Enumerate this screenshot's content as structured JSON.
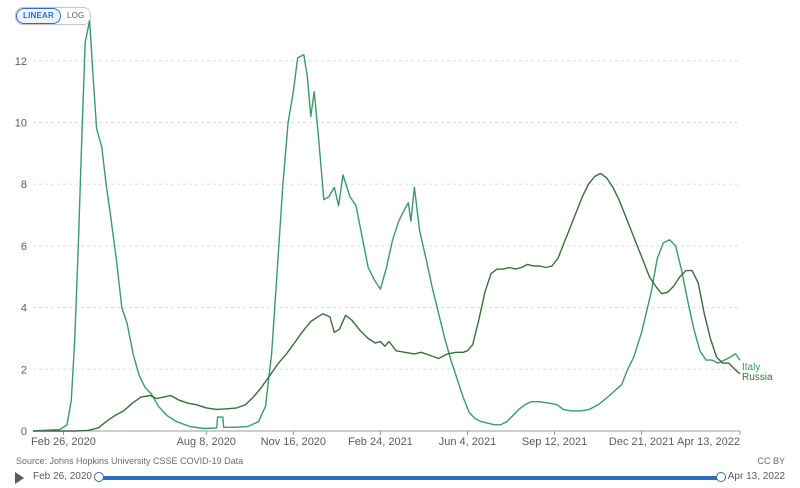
{
  "controls": {
    "linear_label": "LINEAR",
    "log_label": "LOG"
  },
  "chart_data": {
    "type": "line",
    "title": "",
    "xlabel": "",
    "ylabel": "",
    "xlim": [
      "2020-01-22",
      "2022-04-13"
    ],
    "ylim": [
      0,
      13
    ],
    "grid": true,
    "y_ticks": [
      0,
      2,
      4,
      6,
      8,
      10,
      12
    ],
    "x_tick_labels": [
      {
        "date": "2020-02-26",
        "label": "Feb 26, 2020"
      },
      {
        "date": "2020-08-08",
        "label": "Aug 8, 2020"
      },
      {
        "date": "2020-11-16",
        "label": "Nov 16, 2020"
      },
      {
        "date": "2021-02-24",
        "label": "Feb 24, 2021"
      },
      {
        "date": "2021-06-04",
        "label": "Jun 4, 2021"
      },
      {
        "date": "2021-09-12",
        "label": "Sep 12, 2021"
      },
      {
        "date": "2021-12-21",
        "label": "Dec 21, 2021"
      },
      {
        "date": "2022-04-13",
        "label": "Apr 13, 2022"
      }
    ],
    "series": [
      {
        "name": "Italy",
        "color": "#3a9b6a",
        "points": [
          [
            "2020-01-22",
            0
          ],
          [
            "2020-02-22",
            0.05
          ],
          [
            "2020-03-01",
            0.2
          ],
          [
            "2020-03-06",
            1
          ],
          [
            "2020-03-10",
            3
          ],
          [
            "2020-03-14",
            6
          ],
          [
            "2020-03-18",
            9.5
          ],
          [
            "2020-03-22",
            12.6
          ],
          [
            "2020-03-27",
            13.3
          ],
          [
            "2020-03-31",
            11.5
          ],
          [
            "2020-04-04",
            9.8
          ],
          [
            "2020-04-10",
            9.2
          ],
          [
            "2020-04-15",
            8
          ],
          [
            "2020-04-20",
            7
          ],
          [
            "2020-04-27",
            5.5
          ],
          [
            "2020-05-03",
            4
          ],
          [
            "2020-05-09",
            3.5
          ],
          [
            "2020-05-16",
            2.5
          ],
          [
            "2020-05-23",
            1.8
          ],
          [
            "2020-05-30",
            1.4
          ],
          [
            "2020-06-06",
            1.2
          ],
          [
            "2020-06-14",
            0.8
          ],
          [
            "2020-06-24",
            0.5
          ],
          [
            "2020-07-05",
            0.3
          ],
          [
            "2020-07-20",
            0.15
          ],
          [
            "2020-08-05",
            0.08
          ],
          [
            "2020-08-20",
            0.1
          ],
          [
            "2020-08-21",
            0.45
          ],
          [
            "2020-08-27",
            0.45
          ],
          [
            "2020-08-28",
            0.12
          ],
          [
            "2020-09-10",
            0.12
          ],
          [
            "2020-09-25",
            0.15
          ],
          [
            "2020-10-07",
            0.3
          ],
          [
            "2020-10-15",
            0.8
          ],
          [
            "2020-10-22",
            2.5
          ],
          [
            "2020-10-28",
            5
          ],
          [
            "2020-11-04",
            8
          ],
          [
            "2020-11-10",
            10
          ],
          [
            "2020-11-16",
            11
          ],
          [
            "2020-11-21",
            12.1
          ],
          [
            "2020-11-28",
            12.2
          ],
          [
            "2020-12-02",
            11.5
          ],
          [
            "2020-12-06",
            10.2
          ],
          [
            "2020-12-10",
            11
          ],
          [
            "2020-12-15",
            9.5
          ],
          [
            "2020-12-21",
            7.5
          ],
          [
            "2020-12-27",
            7.6
          ],
          [
            "2021-01-02",
            7.9
          ],
          [
            "2021-01-07",
            7.3
          ],
          [
            "2021-01-12",
            8.3
          ],
          [
            "2021-01-20",
            7.6
          ],
          [
            "2021-01-27",
            7.3
          ],
          [
            "2021-02-03",
            6.3
          ],
          [
            "2021-02-10",
            5.3
          ],
          [
            "2021-02-17",
            4.9
          ],
          [
            "2021-02-24",
            4.6
          ],
          [
            "2021-03-03",
            5.3
          ],
          [
            "2021-03-10",
            6.2
          ],
          [
            "2021-03-17",
            6.8
          ],
          [
            "2021-03-24",
            7.2
          ],
          [
            "2021-03-28",
            7.4
          ],
          [
            "2021-03-31",
            6.8
          ],
          [
            "2021-04-04",
            7.9
          ],
          [
            "2021-04-10",
            6.5
          ],
          [
            "2021-04-18",
            5.5
          ],
          [
            "2021-04-25",
            4.6
          ],
          [
            "2021-05-02",
            3.8
          ],
          [
            "2021-05-09",
            3
          ],
          [
            "2021-05-16",
            2.3
          ],
          [
            "2021-05-23",
            1.7
          ],
          [
            "2021-05-30",
            1.1
          ],
          [
            "2021-06-06",
            0.6
          ],
          [
            "2021-06-13",
            0.4
          ],
          [
            "2021-06-20",
            0.3
          ],
          [
            "2021-06-28",
            0.25
          ],
          [
            "2021-07-05",
            0.2
          ],
          [
            "2021-07-12",
            0.2
          ],
          [
            "2021-07-19",
            0.3
          ],
          [
            "2021-07-26",
            0.5
          ],
          [
            "2021-08-02",
            0.7
          ],
          [
            "2021-08-09",
            0.85
          ],
          [
            "2021-08-16",
            0.95
          ],
          [
            "2021-08-25",
            0.95
          ],
          [
            "2021-09-06",
            0.9
          ],
          [
            "2021-09-15",
            0.85
          ],
          [
            "2021-09-22",
            0.7
          ],
          [
            "2021-10-01",
            0.65
          ],
          [
            "2021-10-12",
            0.65
          ],
          [
            "2021-10-22",
            0.7
          ],
          [
            "2021-11-01",
            0.85
          ],
          [
            "2021-11-10",
            1.05
          ],
          [
            "2021-11-20",
            1.3
          ],
          [
            "2021-11-28",
            1.5
          ],
          [
            "2021-12-05",
            2
          ],
          [
            "2021-12-12",
            2.4
          ],
          [
            "2021-12-21",
            3.2
          ],
          [
            "2022-01-01",
            4.5
          ],
          [
            "2022-01-08",
            5.6
          ],
          [
            "2022-01-15",
            6.1
          ],
          [
            "2022-01-22",
            6.2
          ],
          [
            "2022-01-29",
            6
          ],
          [
            "2022-02-05",
            5.2
          ],
          [
            "2022-02-12",
            4.2
          ],
          [
            "2022-02-19",
            3.3
          ],
          [
            "2022-02-26",
            2.6
          ],
          [
            "2022-03-05",
            2.3
          ],
          [
            "2022-03-12",
            2.3
          ],
          [
            "2022-03-19",
            2.2
          ],
          [
            "2022-03-26",
            2.3
          ],
          [
            "2022-04-02",
            2.4
          ],
          [
            "2022-04-08",
            2.5
          ],
          [
            "2022-04-13",
            2.3
          ]
        ]
      },
      {
        "name": "Russia",
        "color": "#3b6e3b",
        "points": [
          [
            "2020-01-22",
            0
          ],
          [
            "2020-03-10",
            0
          ],
          [
            "2020-03-25",
            0.02
          ],
          [
            "2020-04-06",
            0.1
          ],
          [
            "2020-04-15",
            0.3
          ],
          [
            "2020-04-25",
            0.5
          ],
          [
            "2020-05-05",
            0.65
          ],
          [
            "2020-05-15",
            0.9
          ],
          [
            "2020-05-25",
            1.1
          ],
          [
            "2020-06-05",
            1.15
          ],
          [
            "2020-06-12",
            1.05
          ],
          [
            "2020-06-20",
            1.1
          ],
          [
            "2020-06-28",
            1.15
          ],
          [
            "2020-07-08",
            1.0
          ],
          [
            "2020-07-18",
            0.9
          ],
          [
            "2020-07-28",
            0.85
          ],
          [
            "2020-08-08",
            0.75
          ],
          [
            "2020-08-20",
            0.7
          ],
          [
            "2020-09-01",
            0.72
          ],
          [
            "2020-09-12",
            0.75
          ],
          [
            "2020-09-22",
            0.85
          ],
          [
            "2020-10-01",
            1.1
          ],
          [
            "2020-10-10",
            1.4
          ],
          [
            "2020-10-20",
            1.8
          ],
          [
            "2020-10-30",
            2.2
          ],
          [
            "2020-11-08",
            2.5
          ],
          [
            "2020-11-16",
            2.8
          ],
          [
            "2020-11-26",
            3.2
          ],
          [
            "2020-12-06",
            3.55
          ],
          [
            "2020-12-14",
            3.7
          ],
          [
            "2020-12-20",
            3.8
          ],
          [
            "2020-12-28",
            3.7
          ],
          [
            "2021-01-02",
            3.2
          ],
          [
            "2021-01-08",
            3.3
          ],
          [
            "2021-01-15",
            3.75
          ],
          [
            "2021-01-22",
            3.6
          ],
          [
            "2021-02-01",
            3.25
          ],
          [
            "2021-02-10",
            3.0
          ],
          [
            "2021-02-18",
            2.85
          ],
          [
            "2021-02-24",
            2.9
          ],
          [
            "2021-03-01",
            2.75
          ],
          [
            "2021-03-06",
            2.9
          ],
          [
            "2021-03-14",
            2.6
          ],
          [
            "2021-03-24",
            2.55
          ],
          [
            "2021-04-04",
            2.5
          ],
          [
            "2021-04-12",
            2.55
          ],
          [
            "2021-04-22",
            2.45
          ],
          [
            "2021-05-02",
            2.35
          ],
          [
            "2021-05-12",
            2.5
          ],
          [
            "2021-05-22",
            2.55
          ],
          [
            "2021-05-30",
            2.55
          ],
          [
            "2021-06-04",
            2.6
          ],
          [
            "2021-06-10",
            2.8
          ],
          [
            "2021-06-17",
            3.6
          ],
          [
            "2021-06-24",
            4.5
          ],
          [
            "2021-07-01",
            5.1
          ],
          [
            "2021-07-08",
            5.25
          ],
          [
            "2021-07-15",
            5.25
          ],
          [
            "2021-07-22",
            5.3
          ],
          [
            "2021-07-29",
            5.25
          ],
          [
            "2021-08-05",
            5.3
          ],
          [
            "2021-08-12",
            5.4
          ],
          [
            "2021-08-19",
            5.35
          ],
          [
            "2021-08-26",
            5.35
          ],
          [
            "2021-09-02",
            5.3
          ],
          [
            "2021-09-09",
            5.35
          ],
          [
            "2021-09-16",
            5.6
          ],
          [
            "2021-09-23",
            6.1
          ],
          [
            "2021-09-30",
            6.6
          ],
          [
            "2021-10-07",
            7.1
          ],
          [
            "2021-10-14",
            7.6
          ],
          [
            "2021-10-21",
            8.0
          ],
          [
            "2021-10-28",
            8.25
          ],
          [
            "2021-11-04",
            8.35
          ],
          [
            "2021-11-11",
            8.2
          ],
          [
            "2021-11-18",
            7.9
          ],
          [
            "2021-11-25",
            7.5
          ],
          [
            "2021-12-02",
            7.0
          ],
          [
            "2021-12-09",
            6.5
          ],
          [
            "2021-12-16",
            6.0
          ],
          [
            "2021-12-23",
            5.5
          ],
          [
            "2021-12-30",
            5.0
          ],
          [
            "2022-01-06",
            4.7
          ],
          [
            "2022-01-13",
            4.45
          ],
          [
            "2022-01-20",
            4.5
          ],
          [
            "2022-01-27",
            4.7
          ],
          [
            "2022-02-03",
            5.0
          ],
          [
            "2022-02-10",
            5.2
          ],
          [
            "2022-02-17",
            5.2
          ],
          [
            "2022-02-24",
            4.8
          ],
          [
            "2022-03-03",
            3.8
          ],
          [
            "2022-03-10",
            3.0
          ],
          [
            "2022-03-17",
            2.4
          ],
          [
            "2022-03-24",
            2.2
          ],
          [
            "2022-03-31",
            2.2
          ],
          [
            "2022-04-07",
            2.0
          ],
          [
            "2022-04-13",
            1.85
          ]
        ]
      }
    ]
  },
  "footer": {
    "source": "Source: Johns Hopkins University CSSE COVID-19 Data",
    "license": "CC BY"
  },
  "timeline": {
    "start_label": "Feb 26, 2020",
    "end_label": "Apr 13, 2022"
  }
}
